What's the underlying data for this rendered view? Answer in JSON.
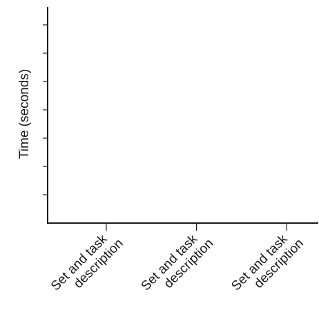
{
  "chart_data": {
    "type": "bar",
    "y_label": "Time (seconds)",
    "categories": [
      "Set and task description",
      "Set and task description",
      "Set and task description"
    ]
  }
}
